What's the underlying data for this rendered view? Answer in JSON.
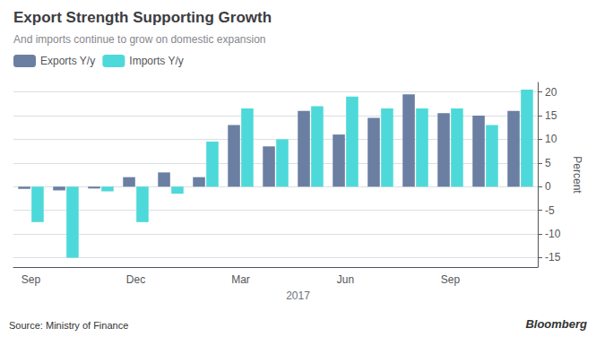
{
  "chart_data": {
    "type": "bar",
    "title": "Export Strength Supporting Growth",
    "subtitle": "And imports continue to grow on domestic expansion",
    "ylabel": "Percent",
    "categories": [
      "Sep",
      null,
      null,
      "Dec",
      null,
      null,
      "Mar",
      null,
      null,
      "Jun",
      null,
      null,
      "Sep",
      null,
      null
    ],
    "series": [
      {
        "name": "Exports Y/y",
        "color": "#6b7fa3",
        "values": [
          -0.5,
          -0.8,
          -0.4,
          2.0,
          3.0,
          2.0,
          13.0,
          8.5,
          16.0,
          11.0,
          14.5,
          19.5,
          15.5,
          15.0,
          16.0
        ]
      },
      {
        "name": "Imports Y/y",
        "color": "#4dd9d9",
        "values": [
          -7.5,
          -15.0,
          -1.0,
          -7.5,
          -1.5,
          9.5,
          16.5,
          10.0,
          17.0,
          19.0,
          16.5,
          16.5,
          16.5,
          13.0,
          20.5
        ]
      }
    ],
    "ylim": [
      -17,
      22
    ],
    "yticks": [
      -15,
      -10,
      -5,
      0,
      5,
      10,
      15,
      20
    ],
    "grid": true,
    "legend": "upper left",
    "annotations": [
      "2017",
      "Source: Ministry of Finance",
      "Bloomberg"
    ]
  }
}
